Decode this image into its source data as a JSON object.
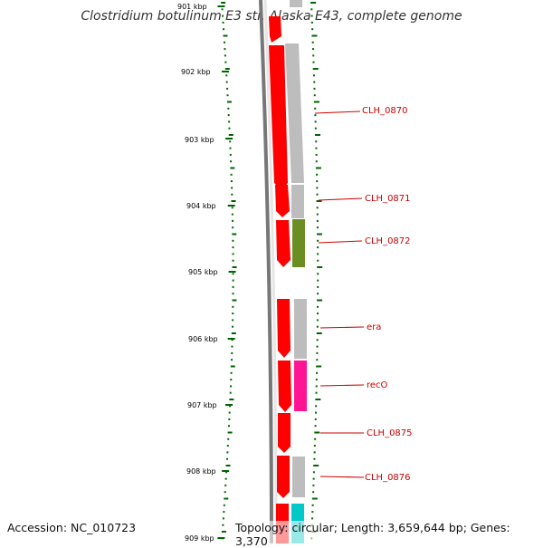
{
  "title": "Clostridium botulinum E3 str. Alaska E43, complete genome",
  "footer": {
    "accession": "Accession: NC_010723",
    "info": "Topology: circular; Length: 3,659,644 bp; Genes: 3,370"
  },
  "ticks": [
    "901 kbp",
    "902 kbp",
    "903 kbp",
    "904 kbp",
    "905 kbp",
    "906 kbp",
    "907 kbp",
    "908 kbp",
    "909 kbp"
  ],
  "gene_labels": [
    "CLH_0870",
    "CLH_0871",
    "CLH_0872",
    "era",
    "recO",
    "CLH_0875",
    "CLH_0876"
  ],
  "colors": {
    "strand_red": "#ff0000",
    "gray_feature": "#bdbdbd",
    "olive_feature": "#6b8e23",
    "magenta_feature": "#ff1493",
    "cyan_feature": "#00c8c8",
    "tick_green": "#006400",
    "backbone": "#777777",
    "label_red": "#cc0000"
  }
}
